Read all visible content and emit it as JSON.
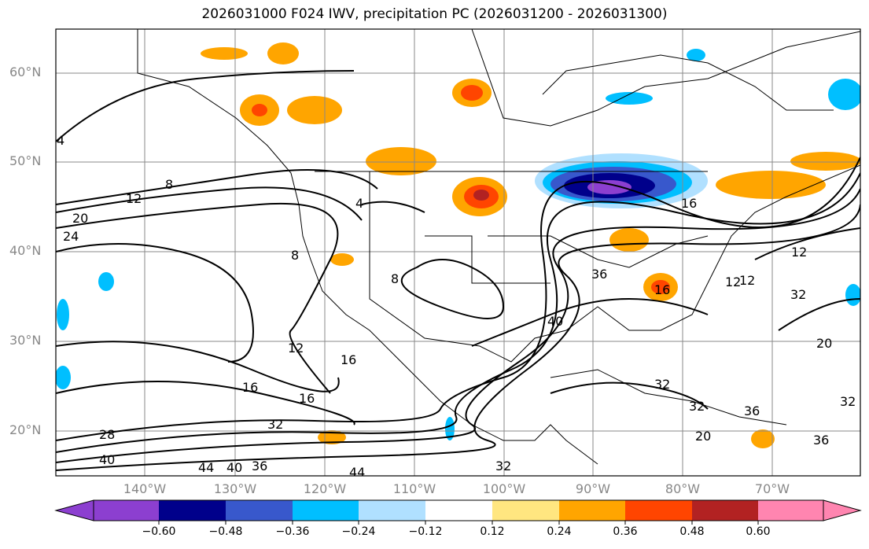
{
  "title": "2026031000 F024 IWV, precipitation PC (2026031200 - 2026031300)",
  "lat_labels": [
    "60°N",
    "50°N",
    "40°N",
    "30°N",
    "20°N"
  ],
  "lon_labels": [
    "140°W",
    "130°W",
    "120°W",
    "110°W",
    "100°W",
    "90°W",
    "80°W",
    "70°W"
  ],
  "colorbar": {
    "ticks": [
      "−0.60",
      "−0.48",
      "−0.36",
      "−0.24",
      "−0.12",
      "0.12",
      "0.24",
      "0.36",
      "0.48",
      "0.60"
    ],
    "colors": [
      "#8c3fd0",
      "#00008b",
      "#3858cc",
      "#00bfff",
      "#b0e0ff",
      "#ffffff",
      "#ffe680",
      "#ffa500",
      "#ff4500",
      "#b22222",
      "#ff85b0"
    ]
  },
  "contour_labels": [
    "4",
    "8",
    "12",
    "20",
    "24",
    "4",
    "8",
    "8",
    "36",
    "16",
    "40",
    "12",
    "16",
    "16",
    "16",
    "32",
    "28",
    "40",
    "44",
    "40",
    "36",
    "44",
    "32",
    "32",
    "36",
    "32",
    "20",
    "32",
    "36",
    "20",
    "12",
    "32",
    "12",
    "16",
    "12"
  ]
}
